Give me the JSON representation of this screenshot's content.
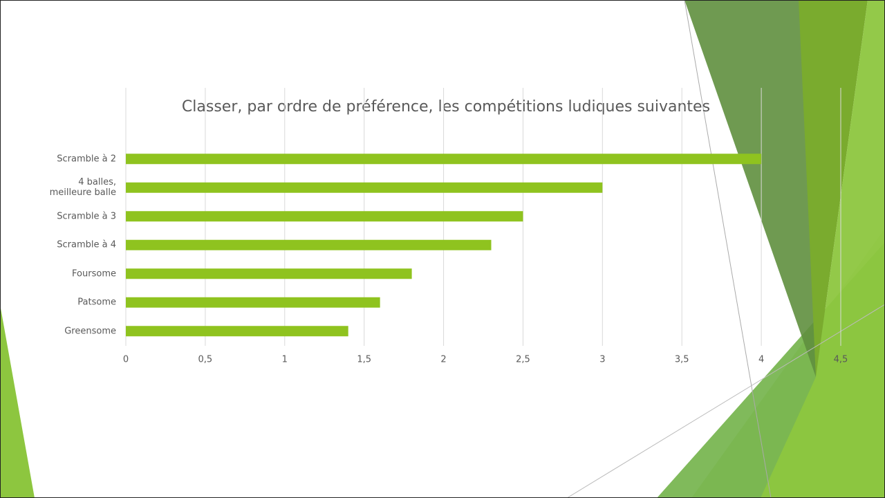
{
  "chart_data": {
    "type": "bar",
    "orientation": "horizontal",
    "title": "Classer, par ordre de préférence, les compétitions ludiques suivantes",
    "categories": [
      "Scramble à 2",
      "4 balles, meilleure balle",
      "Scramble à 3",
      "Scramble à 4",
      "Foursome",
      "Patsome",
      "Greensome"
    ],
    "values": [
      4,
      3,
      2.5,
      2.3,
      1.8,
      1.6,
      1.4
    ],
    "color": "#8fc31f",
    "xlim": [
      0,
      4.5
    ],
    "xticks": [
      0,
      {
        "value": 0.5,
        "label": "0,5"
      },
      1,
      {
        "value": 1.5,
        "label": "1,5"
      },
      2,
      {
        "value": 2.5,
        "label": "2,5"
      },
      3,
      {
        "value": 3.5,
        "label": "3,5"
      },
      4,
      {
        "value": 4.5,
        "label": "4,5"
      }
    ],
    "grid": true
  }
}
